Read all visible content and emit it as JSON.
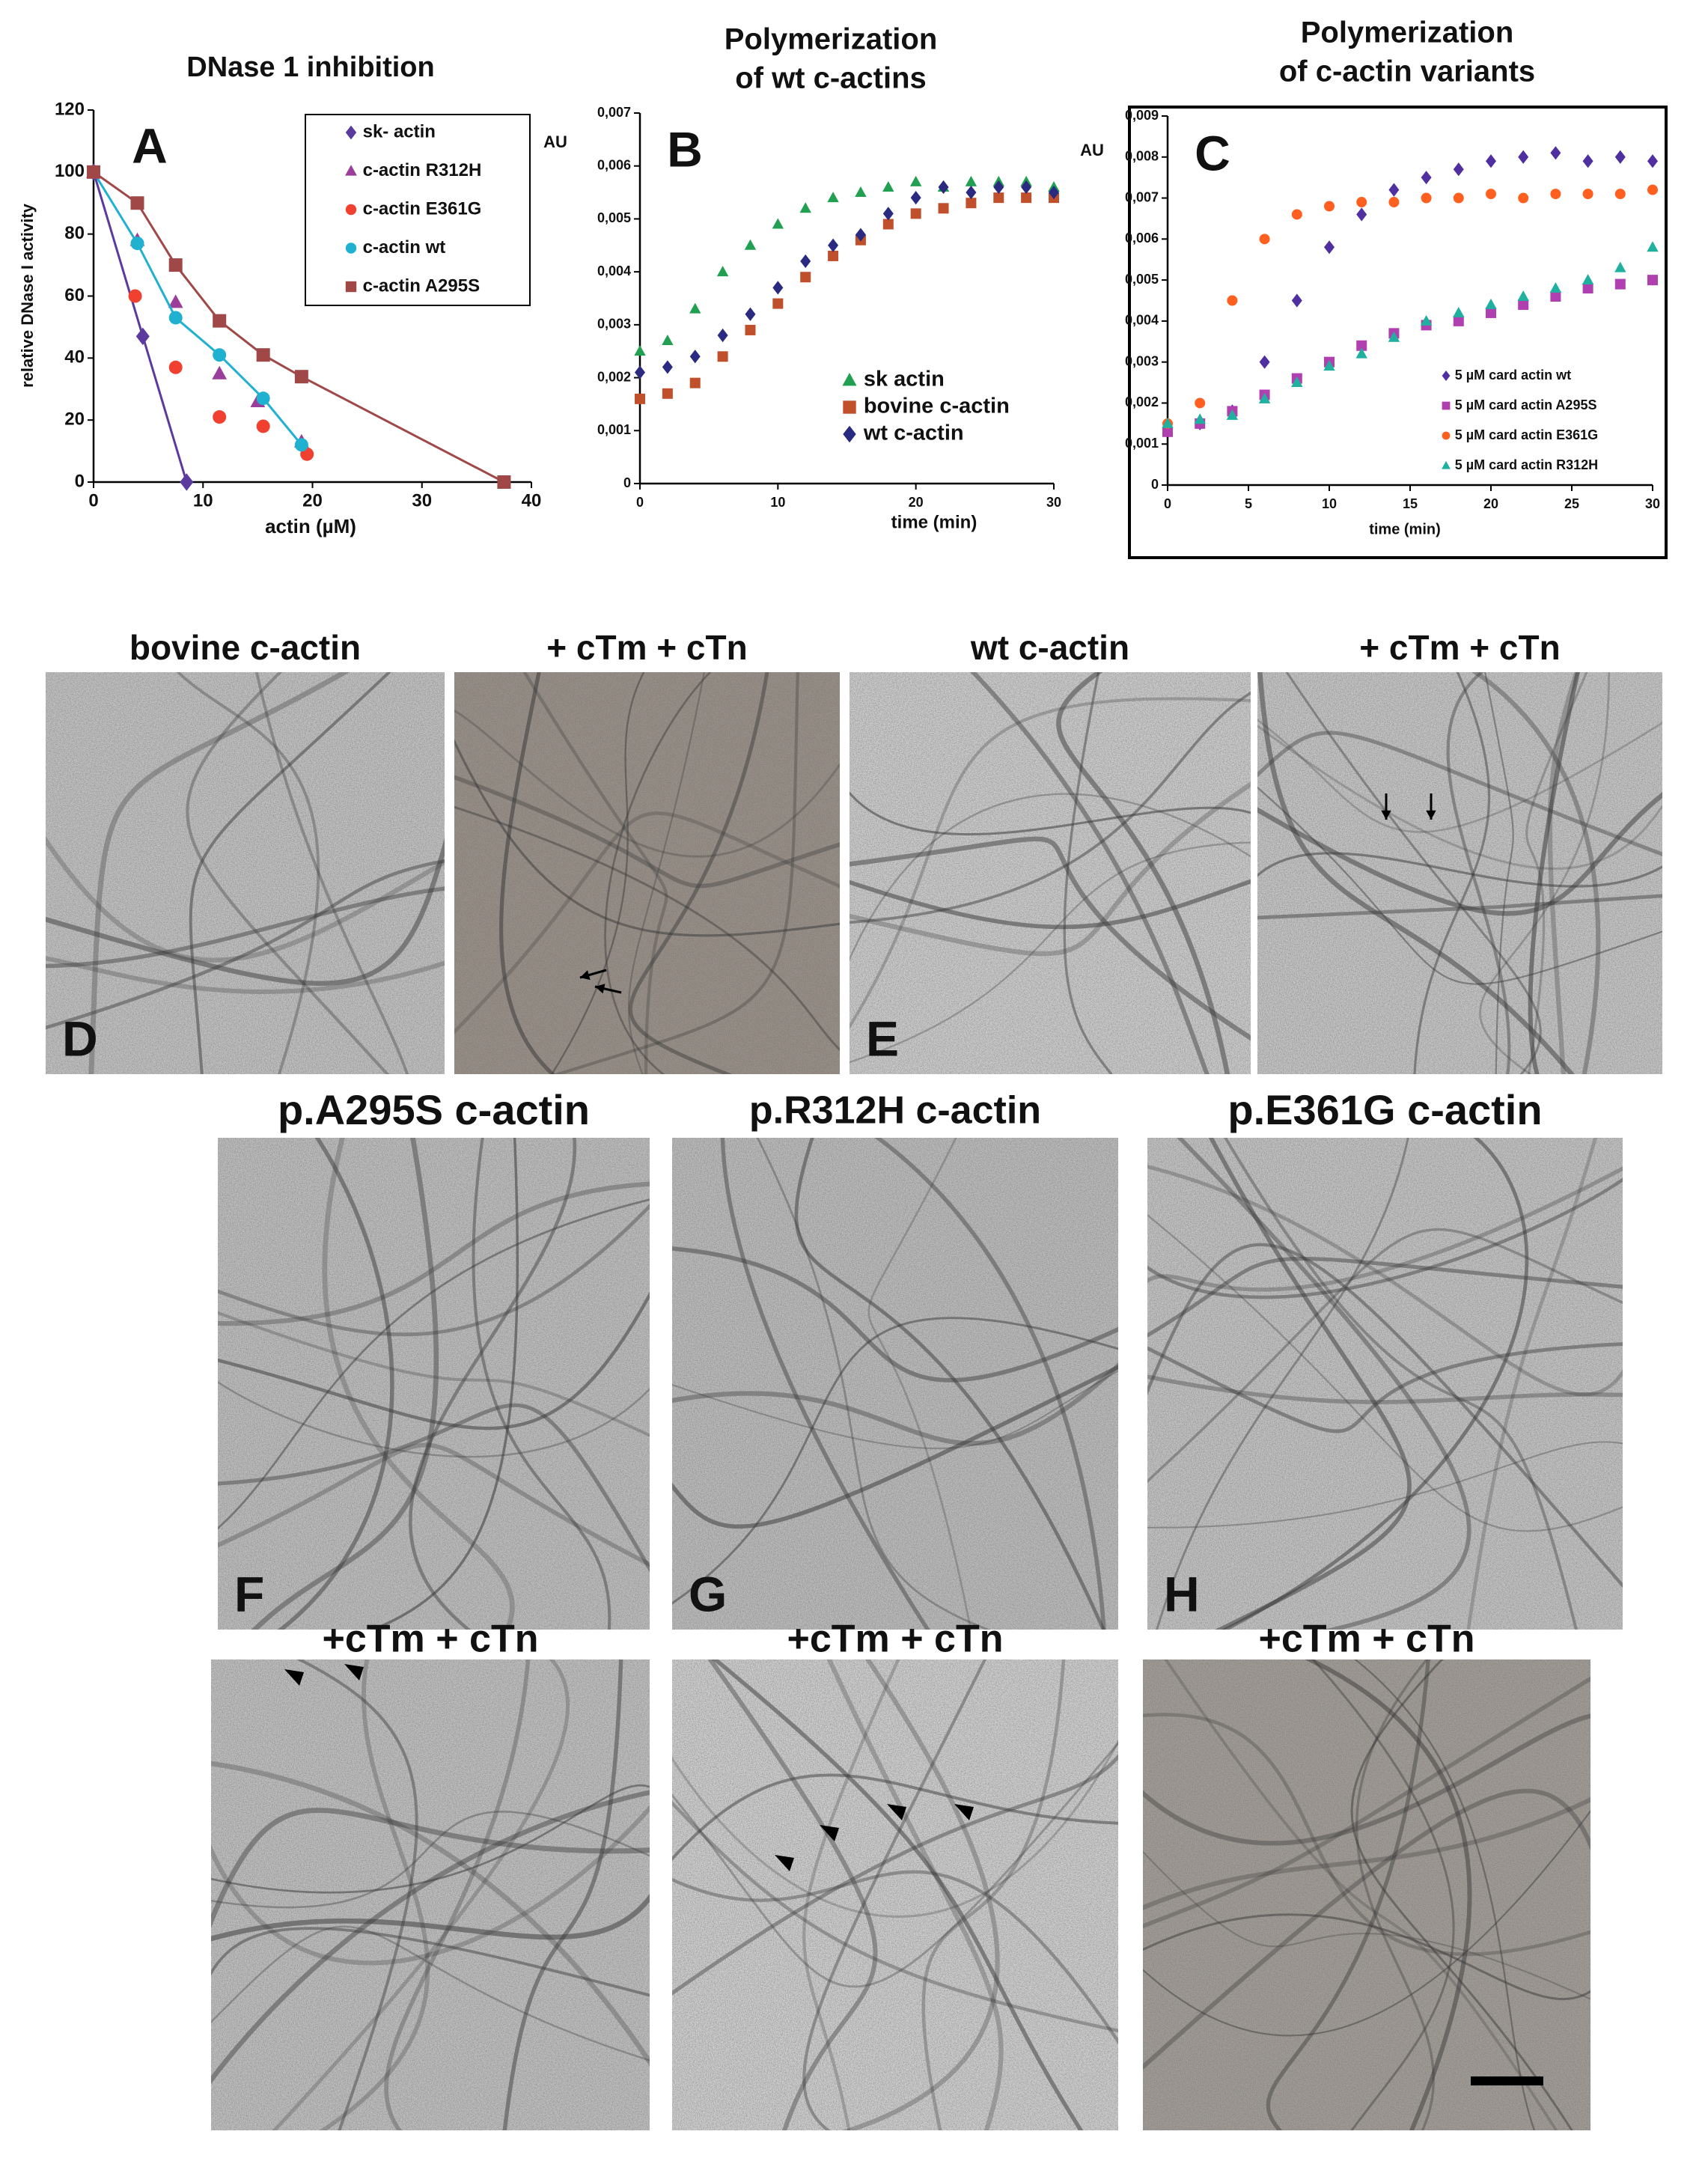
{
  "chart_data": [
    {
      "type": "scatter",
      "panel_label": "A",
      "title": "DNase 1 inhibition",
      "x_label": "actin (µM)",
      "y_label": "relative DNase I activity",
      "xlim": [
        0,
        40
      ],
      "ylim": [
        0,
        120
      ],
      "xticks": [
        0,
        10,
        20,
        30,
        40
      ],
      "yticks": [
        0,
        20,
        40,
        60,
        80,
        100,
        120
      ],
      "grid": false,
      "legend": "upper right",
      "series": [
        {
          "name": "sk- actin",
          "color": "#5b3a9e",
          "marker": "diamond",
          "line": true,
          "x": [
            0,
            4.5,
            8.5
          ],
          "values": [
            100,
            47,
            0
          ]
        },
        {
          "name": "c-actin R312H",
          "color": "#9b3d9b",
          "marker": "triangle",
          "line": false,
          "x": [
            0,
            4,
            7.5,
            11.5,
            15,
            19
          ],
          "values": [
            100,
            78,
            58,
            35,
            26,
            13
          ]
        },
        {
          "name": "c-actin E361G",
          "color": "#f04030",
          "marker": "circle",
          "line": false,
          "x": [
            0,
            3.8,
            7.5,
            11.5,
            15.5,
            19.5
          ],
          "values": [
            100,
            60,
            37,
            21,
            18,
            9
          ]
        },
        {
          "name": "c-actin wt",
          "color": "#20b0d0",
          "marker": "circle",
          "line": true,
          "x": [
            0,
            4,
            7.5,
            11.5,
            15.5,
            19
          ],
          "values": [
            100,
            77,
            53,
            41,
            27,
            12
          ]
        },
        {
          "name": "c-actin A295S",
          "color": "#a04848",
          "marker": "square",
          "line": true,
          "x": [
            0,
            4,
            7.5,
            11.5,
            15.5,
            19,
            37.5
          ],
          "values": [
            100,
            90,
            70,
            52,
            41,
            34,
            0
          ]
        }
      ]
    },
    {
      "type": "scatter",
      "panel_label": "B",
      "title": [
        "Polymerization",
        "of wt c-actins"
      ],
      "x_label": "time (min)",
      "y_label": "AU",
      "xlim": [
        0,
        30
      ],
      "ylim": [
        0,
        0.007
      ],
      "xticks": [
        0,
        10,
        20,
        30
      ],
      "yticks": [
        0,
        {
          "value": 0.001,
          "label": "0,001"
        },
        {
          "value": 0.002,
          "label": "0,002"
        },
        {
          "value": 0.003,
          "label": "0,003"
        },
        {
          "value": 0.004,
          "label": "0,004"
        },
        {
          "value": 0.005,
          "label": "0,005"
        },
        {
          "value": 0.006,
          "label": "0,006"
        },
        {
          "value": 0.007,
          "label": "0,007"
        }
      ],
      "grid": false,
      "legend": "lower right",
      "x": [
        0,
        2,
        4,
        6,
        8,
        10,
        12,
        14,
        16,
        18,
        20,
        22,
        24,
        26,
        28,
        30
      ],
      "series": [
        {
          "name": "sk actin",
          "color": "#20a050",
          "marker": "triangle",
          "values": [
            0.0025,
            0.0027,
            0.0033,
            0.004,
            0.0045,
            0.0049,
            0.0052,
            0.0054,
            0.0055,
            0.0056,
            0.0057,
            0.0056,
            0.0057,
            0.0057,
            0.0057,
            0.0056
          ]
        },
        {
          "name": "bovine c-actin",
          "color": "#c0502c",
          "marker": "square",
          "values": [
            0.0016,
            0.0017,
            0.0019,
            0.0024,
            0.0029,
            0.0034,
            0.0039,
            0.0043,
            0.0046,
            0.0049,
            0.0051,
            0.0052,
            0.0053,
            0.0054,
            0.0054,
            0.0054
          ]
        },
        {
          "name": "wt c-actin",
          "color": "#2a2a80",
          "marker": "diamond",
          "values": [
            0.0021,
            0.0022,
            0.0024,
            0.0028,
            0.0032,
            0.0037,
            0.0042,
            0.0045,
            0.0047,
            0.0051,
            0.0054,
            0.0056,
            0.0055,
            0.0056,
            0.0056,
            0.0055
          ]
        }
      ]
    },
    {
      "type": "scatter",
      "panel_label": "C",
      "title": [
        "Polymerization",
        "of c-actin variants"
      ],
      "x_label": "time (min)",
      "y_label": "AU",
      "xlim": [
        0,
        30
      ],
      "ylim": [
        0,
        0.009
      ],
      "xticks": [
        0,
        5,
        10,
        15,
        20,
        25,
        30
      ],
      "yticks": [
        0,
        {
          "value": 0.001,
          "label": "0,001"
        },
        {
          "value": 0.002,
          "label": "0,002"
        },
        {
          "value": 0.003,
          "label": "0,003"
        },
        {
          "value": 0.004,
          "label": "0,004"
        },
        {
          "value": 0.005,
          "label": "0,005"
        },
        {
          "value": 0.006,
          "label": "0,006"
        },
        {
          "value": 0.007,
          "label": "0,007"
        },
        {
          "value": 0.008,
          "label": "0,008"
        },
        {
          "value": 0.009,
          "label": "0,009"
        }
      ],
      "grid": false,
      "legend": "lower right",
      "x": [
        0,
        2,
        4,
        6,
        8,
        10,
        12,
        14,
        16,
        18,
        20,
        22,
        24,
        26,
        28,
        30
      ],
      "series": [
        {
          "name": "5 µM card actin wt",
          "color": "#5030a0",
          "marker": "diamond",
          "values": [
            0.0014,
            0.0015,
            0.0018,
            0.003,
            0.0045,
            0.0058,
            0.0066,
            0.0072,
            0.0075,
            0.0077,
            0.0079,
            0.008,
            0.0081,
            0.0079,
            0.008,
            0.0079
          ]
        },
        {
          "name": "5 µM card actin A295S",
          "color": "#b040b0",
          "marker": "square",
          "values": [
            0.0013,
            0.0015,
            0.0018,
            0.0022,
            0.0026,
            0.003,
            0.0034,
            0.0037,
            0.0039,
            0.004,
            0.0042,
            0.0044,
            0.0046,
            0.0048,
            0.0049,
            0.005
          ]
        },
        {
          "name": "5 µM card actin E361G",
          "color": "#ff6020",
          "marker": "circle",
          "values": [
            0.0015,
            0.002,
            0.0045,
            0.006,
            0.0066,
            0.0068,
            0.0069,
            0.0069,
            0.007,
            0.007,
            0.0071,
            0.007,
            0.0071,
            0.0071,
            0.0071,
            0.0072
          ]
        },
        {
          "name": "5 µM card actin R312H",
          "color": "#20b0a0",
          "marker": "triangle",
          "values": [
            0.0015,
            0.0016,
            0.0017,
            0.0021,
            0.0025,
            0.0029,
            0.0032,
            0.0036,
            0.004,
            0.0042,
            0.0044,
            0.0046,
            0.0048,
            0.005,
            0.0053,
            0.0058
          ]
        }
      ]
    }
  ],
  "micrographs": [
    {
      "title": "bovine c-actin",
      "label": "D"
    },
    {
      "title": "+ cTm + cTn"
    },
    {
      "title": "wt c-actin",
      "label": "E"
    },
    {
      "title": "+ cTm + cTn"
    },
    {
      "title": "p.A295S c-actin",
      "label": "F"
    },
    {
      "title": "p.R312H c-actin",
      "label": "G"
    },
    {
      "title": "p.E361G c-actin",
      "label": "H"
    },
    {
      "title": "+cTm + cTn"
    },
    {
      "title": "+cTm + cTn"
    },
    {
      "title": "+cTm + cTn"
    }
  ]
}
